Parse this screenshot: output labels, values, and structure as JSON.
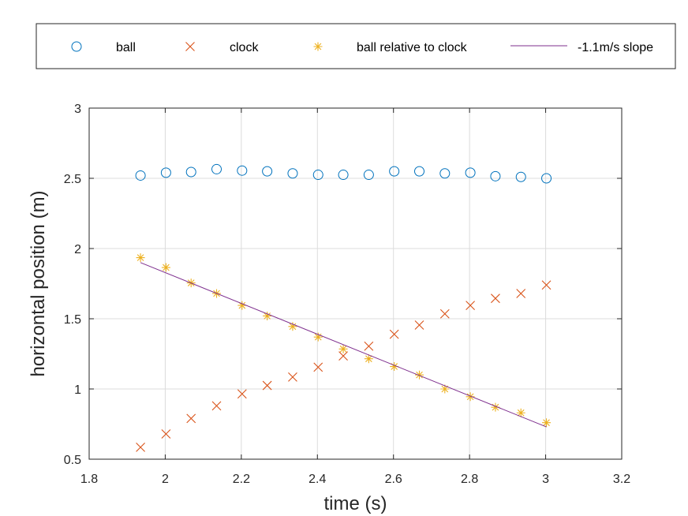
{
  "chart_data": {
    "type": "scatter",
    "xlabel": "time (s)",
    "ylabel": "horizontal position (m)",
    "xlim": [
      1.8,
      3.2
    ],
    "ylim": [
      0.5,
      3
    ],
    "xticks": [
      "1.8",
      "2",
      "2.2",
      "2.4",
      "2.6",
      "2.8",
      "3",
      "3.2"
    ],
    "yticks": [
      "0.5",
      "1",
      "1.5",
      "2",
      "2.5",
      "3"
    ],
    "grid": true,
    "legend_position": "top, outside, horizontal",
    "series": [
      {
        "name": "ball",
        "marker": "circle",
        "color": "#0072BD",
        "x": [
          1.935,
          2.002,
          2.068,
          2.135,
          2.202,
          2.268,
          2.335,
          2.402,
          2.468,
          2.535,
          2.602,
          2.668,
          2.735,
          2.802,
          2.868,
          2.935,
          3.002
        ],
        "y": [
          2.52,
          2.54,
          2.545,
          2.565,
          2.555,
          2.55,
          2.535,
          2.525,
          2.525,
          2.525,
          2.55,
          2.55,
          2.535,
          2.54,
          2.515,
          2.51,
          2.5
        ]
      },
      {
        "name": "clock",
        "marker": "x",
        "color": "#D95319",
        "x": [
          1.935,
          2.002,
          2.068,
          2.135,
          2.202,
          2.268,
          2.335,
          2.402,
          2.468,
          2.535,
          2.602,
          2.668,
          2.735,
          2.802,
          2.868,
          2.935,
          3.002
        ],
        "y": [
          0.585,
          0.68,
          0.79,
          0.88,
          0.965,
          1.025,
          1.085,
          1.155,
          1.235,
          1.305,
          1.39,
          1.455,
          1.535,
          1.595,
          1.645,
          1.68,
          1.74
        ]
      },
      {
        "name": "ball relative to clock",
        "marker": "asterisk",
        "color": "#EDB120",
        "x": [
          1.935,
          2.002,
          2.068,
          2.135,
          2.202,
          2.268,
          2.335,
          2.402,
          2.468,
          2.535,
          2.602,
          2.668,
          2.735,
          2.802,
          2.868,
          2.935,
          3.002
        ],
        "y": [
          1.935,
          1.865,
          1.755,
          1.68,
          1.595,
          1.52,
          1.445,
          1.37,
          1.285,
          1.215,
          1.16,
          1.1,
          1.0,
          0.945,
          0.87,
          0.83,
          0.76
        ]
      },
      {
        "name": "-1.1m/s slope",
        "marker": "line",
        "color": "#7E2F8E",
        "x": [
          1.935,
          3.002
        ],
        "y": [
          1.9,
          0.73
        ]
      }
    ]
  }
}
